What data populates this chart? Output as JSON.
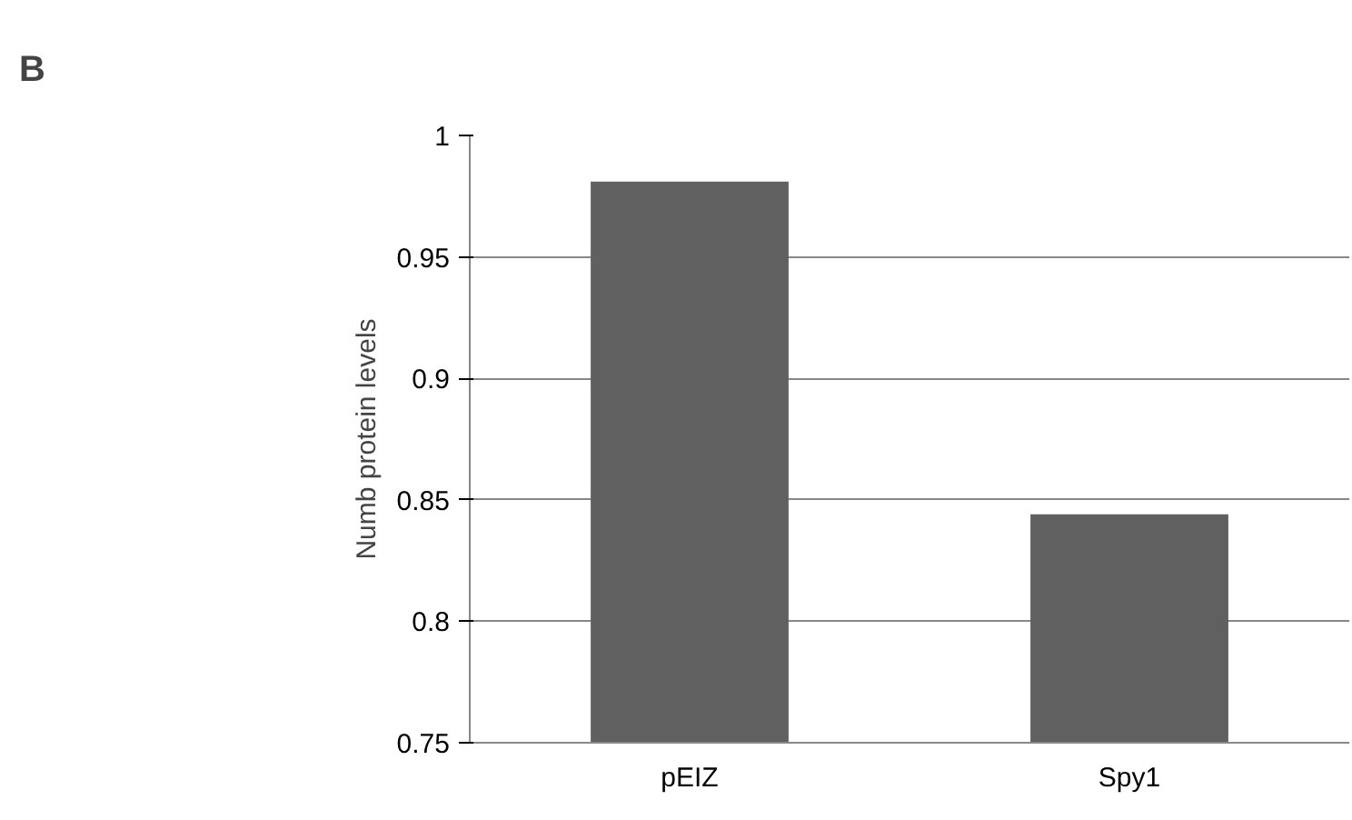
{
  "chart_data": {
    "type": "bar",
    "ylabel": "Numb protein levels",
    "categories": [
      "pEIZ",
      "Spy1"
    ],
    "values": [
      0.981,
      0.844
    ],
    "color": "#606060",
    "ylim": [
      0.75,
      1
    ],
    "yticks": [
      0.75,
      0.8,
      0.85,
      0.9,
      0.95,
      1
    ],
    "grid": "y",
    "annotations": [
      "B"
    ]
  }
}
